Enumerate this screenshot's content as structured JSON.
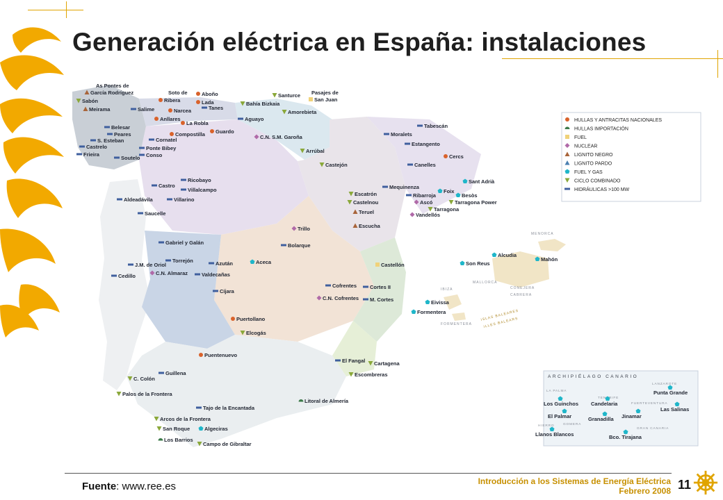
{
  "title": "Generación eléctrica en España: instalaciones",
  "footer": {
    "source_label": "Fuente",
    "source_rest": ": www.ree.es",
    "course_line1": "Introducción a los Sistemas de Energía Eléctrica",
    "course_line2": "Febrero 2008",
    "page_number": "11"
  },
  "legend": {
    "items": [
      {
        "label": "HULLAS Y ANTRACITAS NACIONALES",
        "symbol": "circle",
        "color": "#d9622b"
      },
      {
        "label": "HULLAS IMPORTACIÓN",
        "symbol": "half-circle",
        "color": "#3d7a4a"
      },
      {
        "label": "FUEL",
        "symbol": "square",
        "color": "#f0d27a"
      },
      {
        "label": "NUCLEAR",
        "symbol": "diamond",
        "color": "#b06aa8"
      },
      {
        "label": "LIGNITO NEGRO",
        "symbol": "triangle",
        "color": "#a8643a"
      },
      {
        "label": "LIGNITO PARDO",
        "symbol": "triangle",
        "color": "#4a7fb0"
      },
      {
        "label": "FUEL Y GAS",
        "symbol": "pentagon",
        "color": "#1fb6c9"
      },
      {
        "label": "CICLO COMBINADO",
        "symbol": "triangle-down",
        "color": "#8aa83a"
      },
      {
        "label": "HIDRÁULICAS >100 MW",
        "symbol": "bar",
        "color": "#3f5f9e"
      }
    ]
  },
  "colors": {
    "accent": "#e0a400",
    "sea": "#ffffff",
    "ocean_islands": "#eef3f7"
  },
  "places": [
    {
      "name": "As Pontes de",
      "sym": "none"
    },
    {
      "name": "García Rodríguez",
      "sym": "triangle"
    },
    {
      "name": "Sabón",
      "sym": "triangle-down"
    },
    {
      "name": "Meirama",
      "sym": "triangle"
    },
    {
      "name": "Soto de",
      "sym": "none"
    },
    {
      "name": "Ribera",
      "sym": "circle"
    },
    {
      "name": "Aboño",
      "sym": "circle"
    },
    {
      "name": "Lada",
      "sym": "circle"
    },
    {
      "name": "Tanes",
      "sym": "bar"
    },
    {
      "name": "Salime",
      "sym": "bar"
    },
    {
      "name": "Narcea",
      "sym": "circle"
    },
    {
      "name": "Anllares",
      "sym": "circle"
    },
    {
      "name": "La Robla",
      "sym": "circle"
    },
    {
      "name": "Belesar",
      "sym": "bar"
    },
    {
      "name": "Peares",
      "sym": "bar"
    },
    {
      "name": "S. Esteban",
      "sym": "bar"
    },
    {
      "name": "Castrelo",
      "sym": "bar"
    },
    {
      "name": "Frieira",
      "sym": "bar"
    },
    {
      "name": "Soutelo",
      "sym": "bar"
    },
    {
      "name": "Cornatel",
      "sym": "bar"
    },
    {
      "name": "Compostilla",
      "sym": "circle"
    },
    {
      "name": "Guardo",
      "sym": "circle"
    },
    {
      "name": "Ponte Bibey",
      "sym": "bar"
    },
    {
      "name": "Conso",
      "sym": "bar"
    },
    {
      "name": "Santurce",
      "sym": "triangle-down"
    },
    {
      "name": "Pasajes de",
      "sym": "none"
    },
    {
      "name": "San Juan",
      "sym": "square"
    },
    {
      "name": "Bahía Bizkaia",
      "sym": "triangle-down"
    },
    {
      "name": "Amorebieta",
      "sym": "triangle-down"
    },
    {
      "name": "Aguayo",
      "sym": "bar"
    },
    {
      "name": "C.N. S.M. Garoña",
      "sym": "diamond"
    },
    {
      "name": "Arrúbal",
      "sym": "triangle-down"
    },
    {
      "name": "Castejón",
      "sym": "triangle-down"
    },
    {
      "name": "Tabescán",
      "sym": "bar"
    },
    {
      "name": "Moralets",
      "sym": "bar"
    },
    {
      "name": "Estangento",
      "sym": "bar"
    },
    {
      "name": "Cercs",
      "sym": "circle"
    },
    {
      "name": "Canelles",
      "sym": "bar"
    },
    {
      "name": "Sant Adrià",
      "sym": "pentagon"
    },
    {
      "name": "Besòs",
      "sym": "pentagon"
    },
    {
      "name": "Foix",
      "sym": "pentagon"
    },
    {
      "name": "Tarragona Power",
      "sym": "triangle-down"
    },
    {
      "name": "Tarragona",
      "sym": "triangle-down"
    },
    {
      "name": "Vandellós",
      "sym": "diamond"
    },
    {
      "name": "Ascó",
      "sym": "diamond"
    },
    {
      "name": "Ribarroja",
      "sym": "bar"
    },
    {
      "name": "Mequinenza",
      "sym": "bar"
    },
    {
      "name": "Escatrón",
      "sym": "triangle-down"
    },
    {
      "name": "Castelnou",
      "sym": "triangle-down"
    },
    {
      "name": "Teruel",
      "sym": "triangle"
    },
    {
      "name": "Escucha",
      "sym": "triangle"
    },
    {
      "name": "Castro",
      "sym": "bar"
    },
    {
      "name": "Ricobayo",
      "sym": "bar"
    },
    {
      "name": "Villalcampo",
      "sym": "bar"
    },
    {
      "name": "Aldeadávila",
      "sym": "bar"
    },
    {
      "name": "Villarino",
      "sym": "bar"
    },
    {
      "name": "Saucelle",
      "sym": "bar"
    },
    {
      "name": "Trillo",
      "sym": "diamond"
    },
    {
      "name": "Bolarque",
      "sym": "bar"
    },
    {
      "name": "Gabriel y Galán",
      "sym": "bar"
    },
    {
      "name": "Torrejón",
      "sym": "bar"
    },
    {
      "name": "J.M. de Oriol",
      "sym": "bar"
    },
    {
      "name": "Azután",
      "sym": "bar"
    },
    {
      "name": "C.N. Almaraz",
      "sym": "diamond"
    },
    {
      "name": "Valdecañas",
      "sym": "bar"
    },
    {
      "name": "Cedillo",
      "sym": "bar"
    },
    {
      "name": "Cíjara",
      "sym": "bar"
    },
    {
      "name": "Aceca",
      "sym": "pentagon"
    },
    {
      "name": "Castellón",
      "sym": "square"
    },
    {
      "name": "Cofrentes",
      "sym": "bar"
    },
    {
      "name": "Cortes II",
      "sym": "bar"
    },
    {
      "name": "C.N. Cofrentes",
      "sym": "diamond"
    },
    {
      "name": "M. Cortes",
      "sym": "bar"
    },
    {
      "name": "Puertollano",
      "sym": "circle"
    },
    {
      "name": "Elcogás",
      "sym": "triangle-down"
    },
    {
      "name": "Puentenuevo",
      "sym": "circle"
    },
    {
      "name": "El Fangal",
      "sym": "bar"
    },
    {
      "name": "Cartagena",
      "sym": "triangle-down"
    },
    {
      "name": "Escombreras",
      "sym": "triangle-down"
    },
    {
      "name": "Guillena",
      "sym": "bar"
    },
    {
      "name": "C. Colón",
      "sym": "triangle-down"
    },
    {
      "name": "Palos de la Frontera",
      "sym": "triangle-down"
    },
    {
      "name": "Tajo de la Encantada",
      "sym": "bar"
    },
    {
      "name": "Arcos de la Frontera",
      "sym": "triangle-down"
    },
    {
      "name": "San Roque",
      "sym": "triangle-down"
    },
    {
      "name": "Algeciras",
      "sym": "pentagon"
    },
    {
      "name": "Los Barrios",
      "sym": "half-circle"
    },
    {
      "name": "Campo de Gibraltar",
      "sym": "triangle-down"
    },
    {
      "name": "Litoral de Almería",
      "sym": "half-circle"
    },
    {
      "name": "Son Reus",
      "sym": "pentagon"
    },
    {
      "name": "Alcudia",
      "sym": "pentagon"
    },
    {
      "name": "Mahón",
      "sym": "pentagon"
    },
    {
      "name": "Eivissa",
      "sym": "pentagon"
    },
    {
      "name": "Formentera",
      "sym": "pentagon"
    }
  ],
  "region_labels": [
    "MENORCA",
    "MALLORCA",
    "IBIZA",
    "CONEJERA",
    "CABRERA",
    "FORMENTERA",
    "ISLAS BALEARES",
    "ILLES BALEARS"
  ],
  "canarias": {
    "title": "ARCHIPIÉLAGO CANARIO",
    "islands": [
      "LA PALMA",
      "TENERIFE",
      "GOMERA",
      "HIERRO",
      "LANZAROTE",
      "FUERTEVENTURA",
      "GRAN CANARIA"
    ],
    "plants": [
      "Los Guinchos",
      "El Palmar",
      "Llanos Blancos",
      "Candelaria",
      "Granadilla",
      "Jinamar",
      "Bco. Tirajana",
      "Punta Grande",
      "Las Salinas"
    ]
  }
}
